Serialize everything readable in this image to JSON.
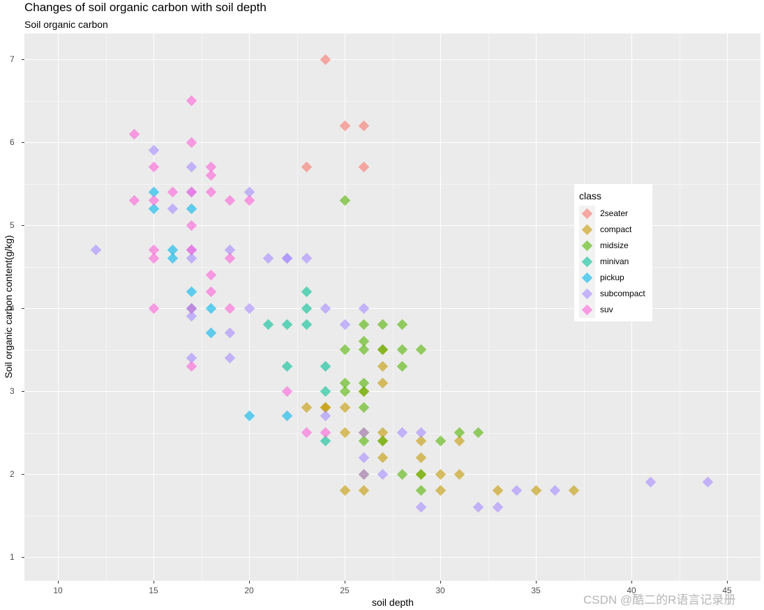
{
  "chart_data": {
    "type": "scatter",
    "title": "Changes of soil organic carbon with soil depth",
    "subtitle": "Soil organic carbon",
    "xlabel": "soil depth",
    "ylabel": "Soil organic carbon content(g/kg)",
    "xlim": [
      8.3,
      46.8
    ],
    "ylim": [
      0.7,
      7.3
    ],
    "x_ticks": [
      10,
      15,
      20,
      25,
      30,
      35,
      40,
      45
    ],
    "y_ticks": [
      1,
      2,
      3,
      4,
      5,
      6,
      7
    ],
    "grid": true,
    "marker": "diamond",
    "alpha": 0.6,
    "legend": {
      "title": "class",
      "position": "inside-right",
      "entries": [
        {
          "name": "2seater",
          "color": "#F8766D"
        },
        {
          "name": "compact",
          "color": "#C49A00"
        },
        {
          "name": "midsize",
          "color": "#53B400"
        },
        {
          "name": "minivan",
          "color": "#00C094"
        },
        {
          "name": "pickup",
          "color": "#00B6EB"
        },
        {
          "name": "subcompact",
          "color": "#A58AFF"
        },
        {
          "name": "suv",
          "color": "#FB61D7"
        }
      ]
    },
    "series": [
      {
        "name": "2seater",
        "points": [
          [
            24,
            7.0
          ],
          [
            25,
            6.2
          ],
          [
            26,
            6.2
          ],
          [
            23,
            5.7
          ],
          [
            26,
            5.7
          ]
        ]
      },
      {
        "name": "compact",
        "points": [
          [
            27,
            3.3
          ],
          [
            27,
            3.1
          ],
          [
            23,
            2.8
          ],
          [
            24,
            2.8
          ],
          [
            25,
            2.8
          ],
          [
            26,
            3.0
          ],
          [
            25,
            2.5
          ],
          [
            27,
            2.5
          ],
          [
            26,
            2.5
          ],
          [
            24,
            2.8
          ],
          [
            29,
            2.4
          ],
          [
            31,
            2.4
          ],
          [
            27,
            2.4
          ],
          [
            27,
            2.2
          ],
          [
            29,
            2.2
          ],
          [
            26,
            2.0
          ],
          [
            30,
            2.0
          ],
          [
            31,
            2.0
          ],
          [
            25,
            1.8
          ],
          [
            26,
            1.8
          ],
          [
            30,
            1.8
          ],
          [
            33,
            1.8
          ],
          [
            35,
            1.8
          ],
          [
            37,
            1.8
          ],
          [
            29,
            2.0
          ],
          [
            27,
            3.5
          ]
        ]
      },
      {
        "name": "midsize",
        "points": [
          [
            25,
            5.3
          ],
          [
            26,
            3.8
          ],
          [
            27,
            3.8
          ],
          [
            28,
            3.8
          ],
          [
            26,
            3.6
          ],
          [
            25,
            3.5
          ],
          [
            26,
            3.5
          ],
          [
            27,
            3.5
          ],
          [
            28,
            3.5
          ],
          [
            29,
            3.5
          ],
          [
            28,
            3.3
          ],
          [
            25,
            3.1
          ],
          [
            26,
            3.1
          ],
          [
            25,
            3.0
          ],
          [
            26,
            3.0
          ],
          [
            26,
            2.8
          ],
          [
            26,
            2.4
          ],
          [
            30,
            2.4
          ],
          [
            31,
            2.5
          ],
          [
            32,
            2.5
          ],
          [
            28,
            2.0
          ],
          [
            29,
            2.0
          ],
          [
            29,
            1.8
          ],
          [
            27,
            2.4
          ]
        ]
      },
      {
        "name": "minivan",
        "points": [
          [
            23,
            4.2
          ],
          [
            23,
            4.0
          ],
          [
            21,
            3.8
          ],
          [
            22,
            3.8
          ],
          [
            23,
            3.8
          ],
          [
            22,
            3.3
          ],
          [
            24,
            3.3
          ],
          [
            24,
            3.0
          ],
          [
            24,
            2.4
          ]
        ]
      },
      {
        "name": "pickup",
        "points": [
          [
            15,
            5.4
          ],
          [
            15,
            5.2
          ],
          [
            17,
            5.2
          ],
          [
            16,
            4.7
          ],
          [
            16,
            4.6
          ],
          [
            17,
            4.2
          ],
          [
            17,
            4.0
          ],
          [
            18,
            4.0
          ],
          [
            18,
            3.7
          ],
          [
            20,
            2.7
          ],
          [
            22,
            2.7
          ]
        ]
      },
      {
        "name": "subcompact",
        "points": [
          [
            20,
            5.4
          ],
          [
            21,
            4.6
          ],
          [
            22,
            4.6
          ],
          [
            23,
            4.6
          ],
          [
            24,
            4.0
          ],
          [
            26,
            4.0
          ],
          [
            25,
            3.8
          ],
          [
            24,
            2.7
          ],
          [
            28,
            2.5
          ],
          [
            26,
            2.2
          ],
          [
            26,
            2.5
          ],
          [
            34,
            1.8
          ],
          [
            36,
            1.8
          ],
          [
            29,
            1.6
          ],
          [
            32,
            1.6
          ],
          [
            33,
            1.6
          ],
          [
            41,
            1.9
          ],
          [
            44,
            1.9
          ],
          [
            12,
            4.7
          ],
          [
            15,
            5.9
          ],
          [
            16,
            5.2
          ],
          [
            17,
            5.7
          ],
          [
            17,
            5.4
          ],
          [
            17,
            4.7
          ],
          [
            17,
            4.6
          ],
          [
            17,
            3.9
          ],
          [
            17,
            3.4
          ],
          [
            19,
            4.7
          ],
          [
            19,
            3.7
          ],
          [
            19,
            3.4
          ],
          [
            20,
            4.0
          ],
          [
            29,
            2.5
          ],
          [
            27,
            2.0
          ],
          [
            26,
            2.0
          ],
          [
            22,
            4.6
          ]
        ]
      },
      {
        "name": "suv",
        "points": [
          [
            17,
            6.5
          ],
          [
            14,
            6.1
          ],
          [
            17,
            6.0
          ],
          [
            15,
            5.7
          ],
          [
            18,
            5.7
          ],
          [
            18,
            5.6
          ],
          [
            14,
            5.3
          ],
          [
            15,
            5.3
          ],
          [
            16,
            5.4
          ],
          [
            17,
            5.4
          ],
          [
            18,
            5.4
          ],
          [
            19,
            5.3
          ],
          [
            20,
            5.3
          ],
          [
            17,
            5.0
          ],
          [
            15,
            4.7
          ],
          [
            15,
            4.6
          ],
          [
            17,
            4.7
          ],
          [
            19,
            4.6
          ],
          [
            18,
            4.4
          ],
          [
            18,
            4.2
          ],
          [
            15,
            4.0
          ],
          [
            17,
            4.0
          ],
          [
            19,
            4.0
          ],
          [
            17,
            3.3
          ],
          [
            22,
            3.0
          ],
          [
            23,
            2.5
          ],
          [
            24,
            2.5
          ]
        ]
      }
    ]
  },
  "watermark": "CSDN @酷二的R语言记录册"
}
